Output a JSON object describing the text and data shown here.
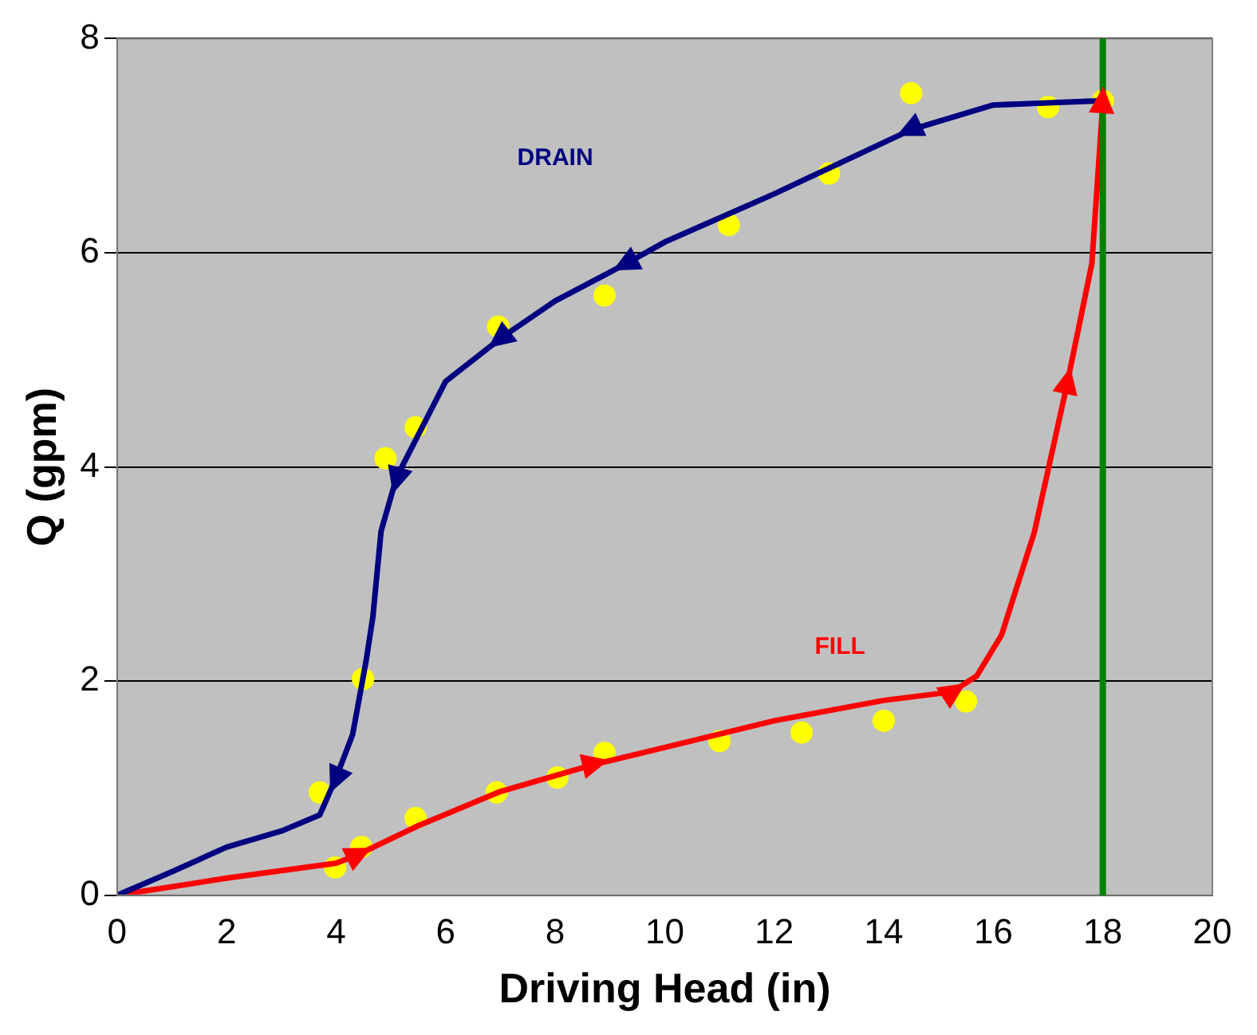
{
  "chart_data": {
    "type": "line",
    "xlabel": "Driving Head (in)",
    "ylabel": "Q (gpm)",
    "xlim": [
      0,
      20
    ],
    "xticks": [
      0,
      2,
      4,
      6,
      8,
      10,
      12,
      14,
      16,
      18,
      20
    ],
    "ylim": [
      0,
      8
    ],
    "yticks": [
      0,
      2,
      4,
      6,
      8
    ],
    "grid": "y",
    "legend": false,
    "series": [
      {
        "name": "DRAIN",
        "color": "#000080",
        "marker": "none",
        "x": [
          0,
          1,
          2,
          3,
          3.7,
          4.0,
          4.3,
          4.55,
          4.67,
          4.82,
          5.1,
          5.3,
          6,
          7,
          8,
          9.3,
          10,
          12,
          14.5,
          16,
          18
        ],
        "values": [
          0,
          0.22,
          0.45,
          0.6,
          0.75,
          1.1,
          1.5,
          2.2,
          2.6,
          3.4,
          3.9,
          4.1,
          4.8,
          5.2,
          5.55,
          5.9,
          6.1,
          6.55,
          7.15,
          7.38,
          7.42
        ]
      },
      {
        "name": "FILL",
        "color": "#ff0000",
        "marker": "none",
        "x": [
          0,
          2,
          4,
          4.4,
          5.5,
          7,
          8.7,
          10,
          12,
          14,
          15.25,
          15.7,
          16.15,
          16.75,
          17.35,
          17.8,
          18
        ],
        "values": [
          0,
          0.16,
          0.3,
          0.38,
          0.65,
          0.97,
          1.22,
          1.38,
          1.63,
          1.82,
          1.9,
          2.05,
          2.43,
          3.39,
          4.78,
          5.9,
          7.4
        ]
      },
      {
        "color": "#ffff00",
        "type": "scatter",
        "marker": "circle",
        "x": [
          3.7,
          3.98,
          4.46,
          4.49,
          4.9,
          5.45,
          5.45,
          6.93,
          6.96,
          8.04,
          8.9,
          8.9,
          11.0,
          11.17,
          12.5,
          13.0,
          14.0,
          14.5,
          15.5,
          17.0,
          18.0
        ],
        "values": [
          0.96,
          0.26,
          0.45,
          2.02,
          4.08,
          4.37,
          0.72,
          0.96,
          5.31,
          1.1,
          1.33,
          5.6,
          1.44,
          6.26,
          1.52,
          6.74,
          1.63,
          7.49,
          1.81,
          7.36,
          7.42
        ]
      }
    ],
    "ref_lines": [
      {
        "axis": "x",
        "value": 18,
        "color": "#008000"
      }
    ]
  }
}
